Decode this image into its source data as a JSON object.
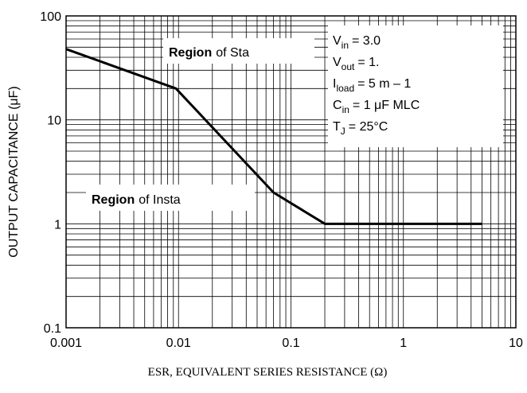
{
  "chart_data": {
    "type": "line",
    "xlabel": "ESR, EQUIVALENT SERIES RESISTANCE (Ω)",
    "ylabel": "OUTPUT CAPACITANCE (μF)",
    "x": [
      0.001,
      0.0095,
      0.07,
      0.2,
      5
    ],
    "series": [
      {
        "color": "#000000",
        "values": [
          48,
          20,
          2,
          1,
          1
        ]
      }
    ],
    "xlim": [
      0.001,
      10
    ],
    "ylim": [
      0.1,
      100
    ],
    "xticks": [
      0.001,
      0.01,
      0.1,
      1,
      10
    ],
    "yticks": [
      0.1,
      1,
      10,
      100
    ],
    "log_x": true,
    "log_y": true,
    "grid": true,
    "annotations": [
      {
        "bold": "Region",
        "text": "of Sta"
      },
      {
        "bold": "Region",
        "text": "of Insta"
      }
    ],
    "conditions": [
      {
        "symbol": "V",
        "sub": "in",
        "text": "= 3.0"
      },
      {
        "symbol": "V",
        "sub": "out",
        "text": "= 1."
      },
      {
        "symbol": "I",
        "sub": "load",
        "text": "= 5 m –    1"
      },
      {
        "symbol": "C",
        "sub": "in",
        "text": "= 1   μF MLC"
      },
      {
        "symbol": "T",
        "sub": "J",
        "text": "= 25°C"
      }
    ]
  }
}
